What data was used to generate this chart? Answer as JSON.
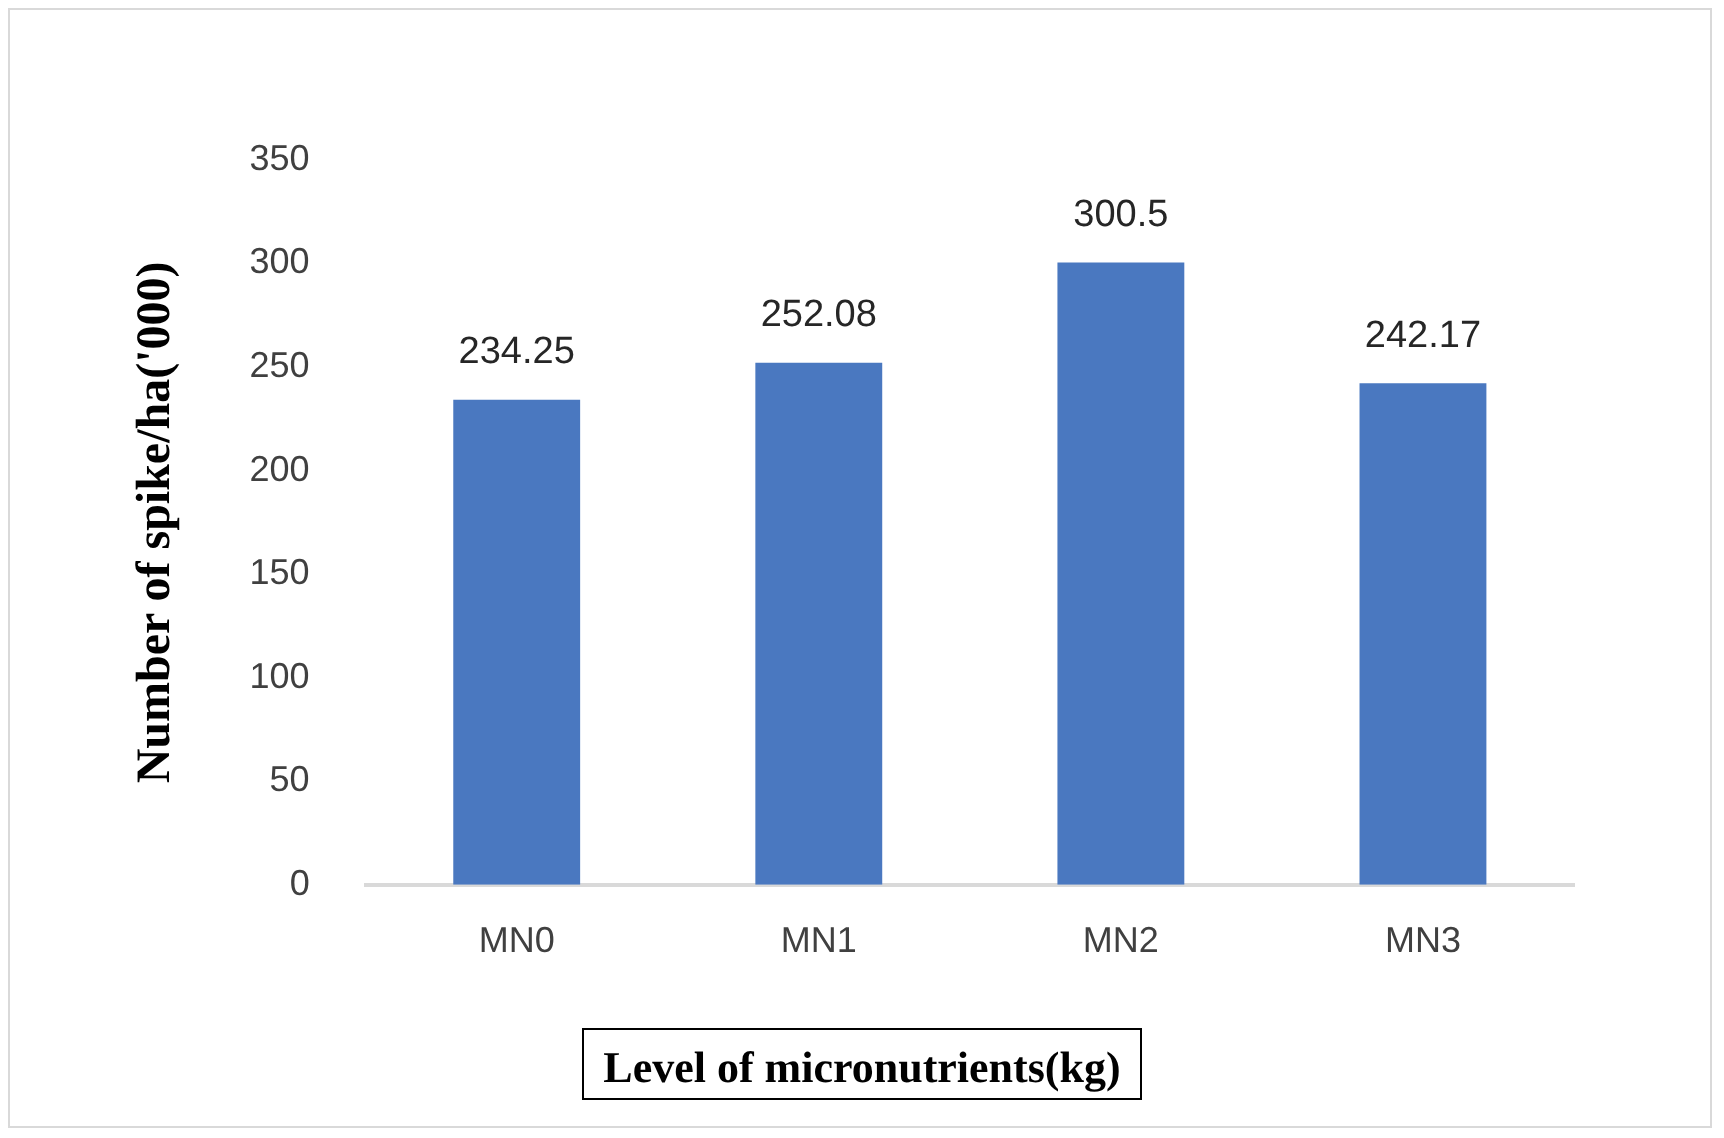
{
  "chart_data": {
    "type": "bar",
    "xlabel": "Level of micronutrients(kg)",
    "ylabel": "Number of spike/ha('000)",
    "categories": [
      "MN0",
      "MN1",
      "MN2",
      "MN3"
    ],
    "values": [
      234.25,
      252.08,
      300.5,
      242.17
    ],
    "color": "#4a78c0",
    "ylim": [
      0,
      350
    ],
    "yticks": [
      0,
      50,
      100,
      150,
      200,
      250,
      300,
      350
    ],
    "grid": false,
    "data_labels": true
  }
}
